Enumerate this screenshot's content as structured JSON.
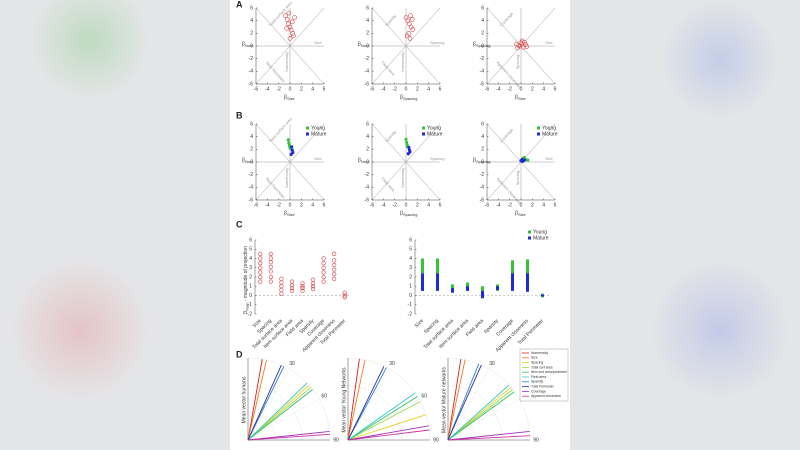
{
  "panel_labels": [
    "A",
    "B",
    "C",
    "D"
  ],
  "scatter": {
    "beta": "β",
    "lim": [
      -6,
      6
    ],
    "ticks": [
      -6,
      -4,
      -2,
      0,
      2,
      4,
      6
    ],
    "plots": [
      {
        "xsub": "Size",
        "ysub": "Num",
        "lines": [
          "Total surface area",
          "Size",
          "Total Perimeter",
          "Numerosity"
        ]
      },
      {
        "xsub": "Spacing",
        "ysub": "Num",
        "lines": [
          "Sparsity",
          "Spacing",
          "Field area",
          "Numerosity"
        ]
      },
      {
        "xsub": "Size",
        "ysub": "Spacing",
        "lines": [
          "Coverage",
          "Size",
          "Apparent closeness",
          "Spacing"
        ]
      }
    ],
    "A": {
      "color": "#d84040",
      "plots": [
        {
          "x": [
            -0.8,
            -0.5,
            -0.3,
            0,
            0.2,
            0.5,
            0.8,
            -0.6,
            0.4,
            0,
            -0.2,
            0.6
          ],
          "y": [
            4.8,
            4.2,
            3.5,
            3,
            2.5,
            2,
            4.5,
            2.8,
            3.8,
            1.2,
            5.2,
            1.6
          ]
        },
        {
          "x": [
            0,
            0.3,
            0.6,
            0.9,
            1.2,
            0.5,
            0.8,
            1.1,
            0.2,
            0.7
          ],
          "y": [
            4.5,
            4,
            3.5,
            3,
            2.6,
            2,
            4.8,
            4.2,
            1.6,
            1.2
          ]
        },
        {
          "x": [
            -0.8,
            -0.4,
            0,
            0.4,
            0.8,
            -0.6,
            0.2,
            0.6,
            -0.2,
            1
          ],
          "y": [
            0.3,
            0.1,
            0.5,
            -0.2,
            0.2,
            -0.3,
            0.8,
            0.6,
            0,
            -0.1
          ]
        }
      ]
    },
    "B": {
      "series": [
        {
          "name": "Young",
          "color": "#35c435",
          "plots": [
            {
              "x": [
                -0.3,
                -0.2,
                -0.1,
                0
              ],
              "y": [
                3.5,
                3,
                2.6,
                2.2
              ]
            },
            {
              "x": [
                0,
                0.1,
                0.2,
                0.3
              ],
              "y": [
                3.6,
                3.1,
                2.7,
                2.4
              ]
            },
            {
              "x": [
                0.4,
                0.8,
                1.2,
                0.6
              ],
              "y": [
                0.6,
                0.4,
                0.3,
                0.7
              ]
            }
          ]
        },
        {
          "name": "Mature",
          "color": "#1c2bd9",
          "plots": [
            {
              "x": [
                0.3,
                0.4,
                0.5,
                0.2
              ],
              "y": [
                2.4,
                1.9,
                1.5,
                1.2
              ]
            },
            {
              "x": [
                0.5,
                0.6,
                0.7,
                0.4
              ],
              "y": [
                2.3,
                1.9,
                1.6,
                1.3
              ]
            },
            {
              "x": [
                0,
                0.3,
                0.6,
                0.2
              ],
              "y": [
                0.2,
                0.1,
                0.3,
                0.4
              ]
            }
          ]
        }
      ]
    }
  },
  "projection": {
    "ylabel": [
      "β",
      "Num",
      " - magnitude of projection"
    ],
    "ylim": [
      -2,
      6
    ],
    "yticks": [
      -2,
      -1,
      0,
      1,
      2,
      3,
      4,
      5,
      6
    ],
    "categories": [
      "Size",
      "Spacing",
      "Total surface area",
      "Item surface area",
      "Field area",
      "Sparsity",
      "Coverage",
      "Apparent closeness",
      "Total Perimeter"
    ],
    "humans": {
      "color": "#d84040",
      "values": [
        [
          1.5,
          2,
          2.5,
          3,
          3.5,
          4,
          4.5
        ],
        [
          1.5,
          2,
          2.6,
          3.1,
          3.6,
          4,
          4.5
        ],
        [
          0.2,
          0.6,
          1,
          1.4,
          1.8
        ],
        [
          0.5,
          0.8,
          1.1,
          1.5
        ],
        [
          0.5,
          0.8,
          1,
          1.3
        ],
        [
          0.7,
          1,
          1.3,
          1.7
        ],
        [
          1.5,
          2,
          2.5,
          3,
          3.5,
          4
        ],
        [
          1.8,
          2.3,
          2.8,
          3.3,
          3.8,
          4.5
        ],
        [
          -0.2,
          0,
          0.3
        ]
      ]
    },
    "series": [
      {
        "name": "Young",
        "color": "#35c435",
        "ranges": [
          [
            2.4,
            4
          ],
          [
            2.4,
            4
          ],
          [
            0.4,
            1.2
          ],
          [
            0.6,
            1.4
          ],
          [
            0,
            1
          ],
          [
            0.5,
            1.2
          ],
          [
            2.2,
            3.8
          ],
          [
            2.2,
            3.9
          ],
          [
            -0.2,
            0.2
          ]
        ]
      },
      {
        "name": "Mature",
        "color": "#1c2bd9",
        "ranges": [
          [
            0.5,
            2.4
          ],
          [
            0.5,
            2.4
          ],
          [
            0.3,
            0.8
          ],
          [
            0.5,
            1
          ],
          [
            -0.3,
            0.5
          ],
          [
            0.6,
            1
          ],
          [
            0.5,
            2.4
          ],
          [
            0.4,
            2.4
          ],
          [
            -0.1,
            0.1
          ]
        ]
      }
    ]
  },
  "polar": {
    "angle_ticks": [
      30,
      60,
      90
    ],
    "measures": [
      {
        "name": "Numerosity",
        "color": "#d62020"
      },
      {
        "name": "Size",
        "color": "#f07a1a"
      },
      {
        "name": "Spacing",
        "color": "#e8d020"
      },
      {
        "name": "Total surf area",
        "color": "#9ad84a"
      },
      {
        "name": "Item surf area/perimeter",
        "color": "#30c060"
      },
      {
        "name": "Field area",
        "color": "#30c8c8"
      },
      {
        "name": "Sparsity",
        "color": "#2a80c8"
      },
      {
        "name": "Total Perimeter",
        "color": "#2a30a0"
      },
      {
        "name": "Coverage",
        "color": "#9a30c0"
      },
      {
        "name": "Apparent closeness",
        "color": "#d030a0"
      }
    ],
    "plots": [
      {
        "ylabel": "Mean vector humans",
        "angles": [
          10,
          13,
          48,
          50,
          52,
          46,
          26,
          24,
          84,
          86
        ]
      },
      {
        "ylabel": "Mean vector Young Networks",
        "angles": [
          8,
          12,
          72,
          62,
          58,
          55,
          28,
          26,
          80,
          83
        ]
      },
      {
        "ylabel": "Mean vector Mature networks",
        "angles": [
          9,
          12,
          50,
          52,
          54,
          48,
          22,
          24,
          84,
          87
        ]
      }
    ]
  }
}
